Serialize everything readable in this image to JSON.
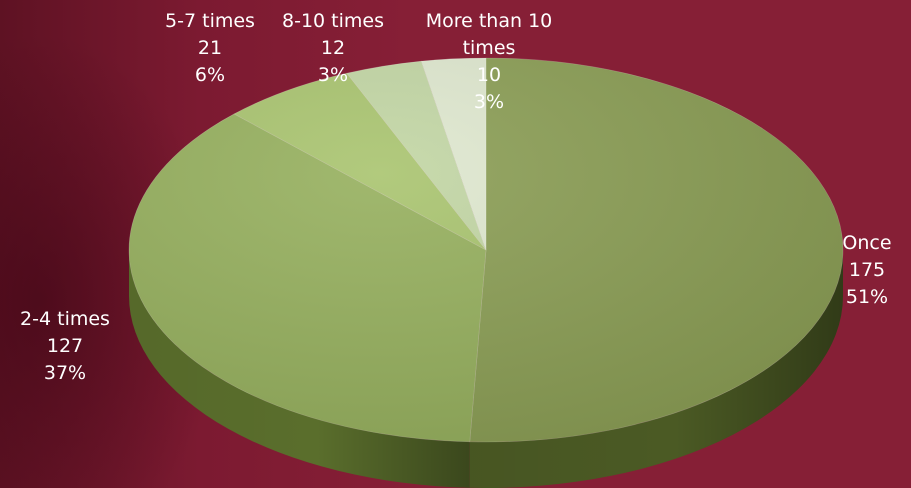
{
  "chart_data": {
    "type": "pie",
    "title": "",
    "categories": [
      "Once",
      "2-4 times",
      "5-7 times",
      "8-10 times",
      "More than 10 times"
    ],
    "values": [
      175,
      127,
      21,
      12,
      10
    ],
    "percent_labels": [
      "51%",
      "37%",
      "6%",
      "3%",
      "3%"
    ],
    "value_labels": [
      "175",
      "127",
      "21",
      "12",
      "10"
    ],
    "category_labels": [
      [
        "Once"
      ],
      [
        "2-4 times"
      ],
      [
        "5-7 times"
      ],
      [
        "8-10 times"
      ],
      [
        "More than 10",
        "times"
      ]
    ],
    "colors": [
      "#8b9e55",
      "#96b05e",
      "#a9c46f",
      "#c2d6a4",
      "#dfe8cf"
    ],
    "side_colors": [
      "#4b5a24",
      "#5a6e2c",
      "#6f8a3b",
      "#98ab7e",
      "#b8c4a6"
    ],
    "style": "3d",
    "legend": "none",
    "background": "#861f36"
  }
}
